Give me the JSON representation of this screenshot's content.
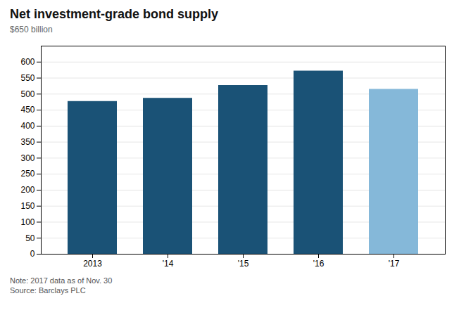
{
  "chart_data": {
    "type": "bar",
    "title": "Net investment-grade bond supply",
    "subtitle": "$650 billion",
    "categories": [
      "2013",
      "'14",
      "'15",
      "'16",
      "'17"
    ],
    "values": [
      477,
      487,
      527,
      572,
      515
    ],
    "colors": [
      "#1a5276",
      "#1a5276",
      "#1a5276",
      "#1a5276",
      "#85b8d9"
    ],
    "ylim": [
      0,
      650
    ],
    "yticks": [
      0,
      50,
      100,
      150,
      200,
      250,
      300,
      350,
      400,
      450,
      500,
      550,
      600
    ],
    "grid": true,
    "annotations": [
      "Note: 2017 data as of Nov. 30",
      "Source: Barclays PLC"
    ]
  }
}
